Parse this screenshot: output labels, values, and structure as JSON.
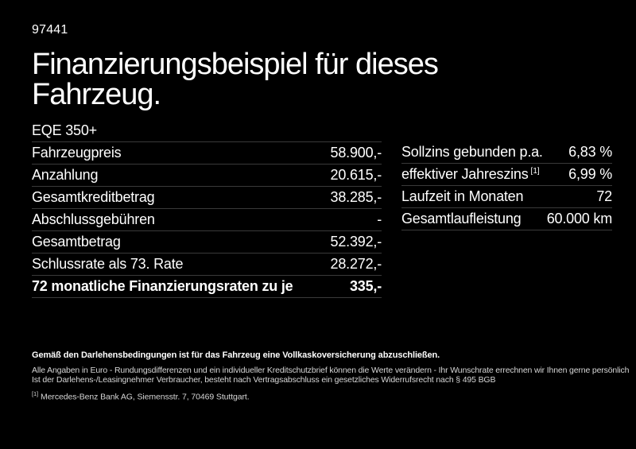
{
  "header": {
    "ref_number": "97441",
    "title": "Finanzierungsbeispiel für dieses Fahrzeug."
  },
  "finance_table": {
    "model": "EQE 350+",
    "rows": [
      {
        "label": "Fahrzeugpreis",
        "value": "58.900,-"
      },
      {
        "label": "Anzahlung",
        "value": "20.615,-"
      },
      {
        "label": "Gesamtkreditbetrag",
        "value": "38.285,-"
      },
      {
        "label": "Abschlussgebühren",
        "value": "-"
      },
      {
        "label": "Gesamtbetrag",
        "value": "52.392,-"
      },
      {
        "label": "Schlussrate als 73. Rate",
        "value": "28.272,-"
      },
      {
        "label": "72 monatliche Finanzierungsraten zu je",
        "value": "335,-",
        "bold": true
      }
    ]
  },
  "conditions_table": {
    "rows": [
      {
        "label": "Sollzins gebunden p.a.",
        "value": "6,83 %"
      },
      {
        "label": "effektiver Jahreszins",
        "footnote_marker": "[1]",
        "value": "6,99 %"
      },
      {
        "label": "Laufzeit in Monaten",
        "value": "72"
      },
      {
        "label": "Gesamtlaufleistung",
        "value": "60.000 km"
      }
    ]
  },
  "footer": {
    "bold_note": "Gemäß den Darlehensbedingungen ist für das Fahrzeug eine Vollkaskoversicherung abzuschließen.",
    "notes": [
      "Alle Angaben in Euro - Rundungsdifferenzen und ein individueller Kreditschutzbrief können die Werte verändern - Ihr Wunschrate errechnen wir Ihnen gerne persönlich",
      "Ist der Darlehens-/Leasingnehmer Verbraucher, besteht nach Vertragsabschluss ein gesetzliches Widerrufsrecht nach § 495 BGB"
    ],
    "footnote_marker": "[1]",
    "footnote_text": "Mercedes-Benz Bank AG, Siemensstr. 7, 70469 Stuttgart."
  },
  "colors": {
    "background": "#000000",
    "text": "#ffffff",
    "muted_text": "#d6d6d6",
    "divider": "#3a3a3a"
  }
}
